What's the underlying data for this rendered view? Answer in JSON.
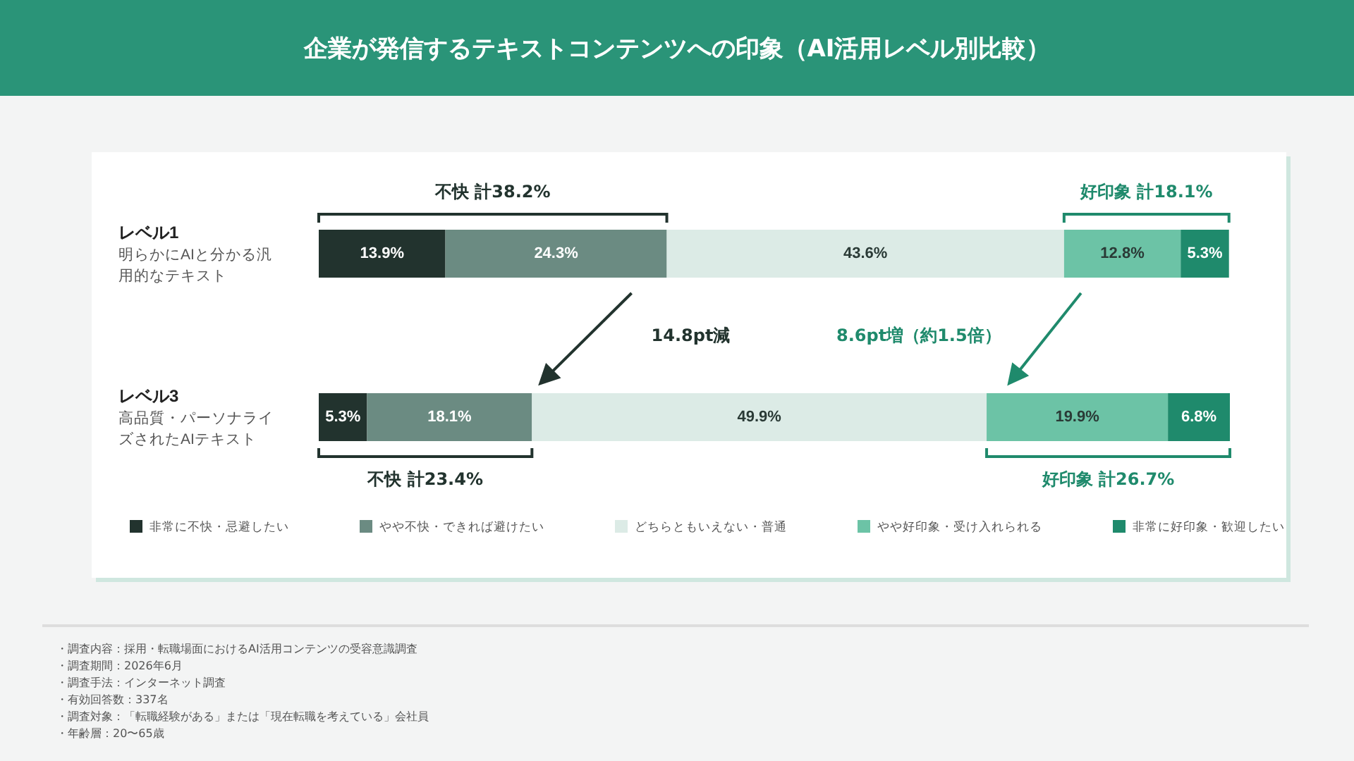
{
  "chart_data": {
    "type": "bar",
    "title": "企業が発信するテキストコンテンツへの印象（AI活用レベル別比較）",
    "orientation": "horizontal",
    "stacked": true,
    "legend": "bottom",
    "tick_labels": "y",
    "categories": [
      "レベル1\n明らかにAIと分かる汎用的なテキスト",
      "レベル3\n高品質・パーソナライズされたAIテキスト"
    ],
    "series": [
      {
        "name": "非常に不快・忌避したい",
        "color": "#22332e",
        "values": [
          13.9,
          5.3
        ],
        "value_labels": [
          "13.9%",
          "5.3%"
        ]
      },
      {
        "name": "やや不快・できれば避けたい",
        "color": "#6b8b82",
        "values": [
          24.3,
          18.1
        ],
        "value_labels": [
          "24.3%",
          "18.1%"
        ]
      },
      {
        "name": "どちらともいえない・普通",
        "color": "#dcebe6",
        "values": [
          43.6,
          49.9
        ],
        "value_labels": [
          "43.6%",
          "49.9%"
        ]
      },
      {
        "name": "やや好印象・受け入れられる",
        "color": "#6cc3a6",
        "values": [
          12.8,
          19.9
        ],
        "value_labels": [
          "12.8%",
          "19.9%"
        ]
      },
      {
        "name": "非常に好印象・歓迎したい",
        "color": "#1f8a6c",
        "values": [
          5.3,
          6.8
        ],
        "value_labels": [
          "5.3%",
          "6.8%"
        ]
      }
    ],
    "annotations": [
      "不快 計38.2%",
      "好印象 計18.1%",
      "14.8pt減",
      "8.6pt増（約1.5倍）",
      "不快 計23.4%",
      "好印象 計26.7%",
      "・調査内容：採用・転職場面におけるAI活用コンテンツの受容意識調査",
      "・調査期間：2026年6月",
      "・調査手法：インターネット調査",
      "・有効回答数：337名",
      "・調査対象：「転職経験がある」または「現在転職を考えている」会社員",
      "・年齢層：20〜65歳"
    ]
  }
}
